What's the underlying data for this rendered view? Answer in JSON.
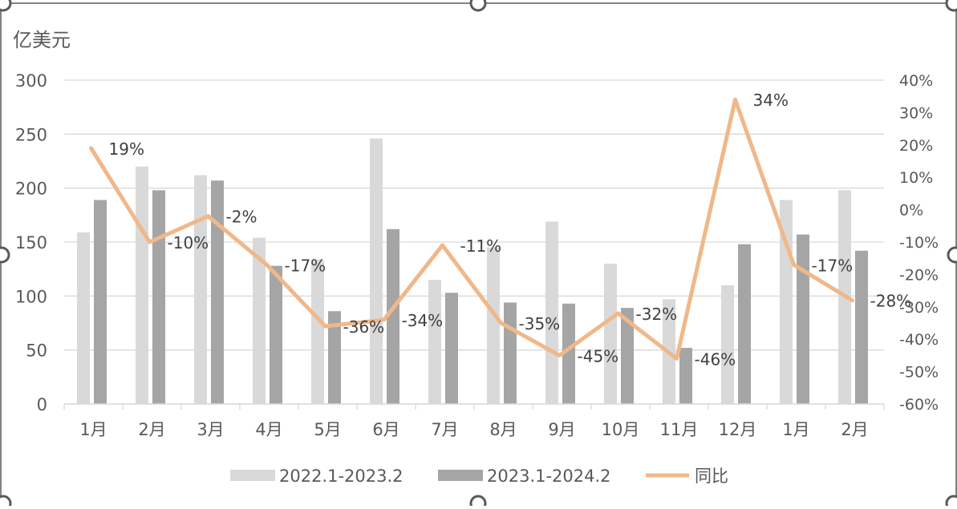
{
  "chart_data": {
    "type": "bar",
    "unit_label": "亿美元",
    "categories": [
      "1月",
      "2月",
      "3月",
      "4月",
      "5月",
      "6月",
      "7月",
      "8月",
      "9月",
      "10月",
      "11月",
      "12月",
      "1月",
      "2月"
    ],
    "series": [
      {
        "name": "2022.1-2023.2",
        "type": "bar",
        "color": "#D9D9D9",
        "values": [
          159,
          220,
          212,
          154,
          134,
          246,
          115,
          145,
          169,
          130,
          97,
          110,
          189,
          198
        ]
      },
      {
        "name": "2023.1-2024.2",
        "type": "bar",
        "color": "#A5A5A5",
        "values": [
          189,
          198,
          207,
          128,
          86,
          162,
          103,
          94,
          93,
          89,
          52,
          148,
          157,
          142
        ]
      },
      {
        "name": "同比",
        "type": "line",
        "axis": "right",
        "color": "#F0B88A",
        "values": [
          19,
          -10,
          -2,
          -17,
          -36,
          -34,
          -11,
          -35,
          -45,
          -32,
          -46,
          34,
          -17,
          -28
        ]
      }
    ],
    "data_labels": [
      "19%",
      "-10%",
      "-2%",
      "-17%",
      "-36%",
      "-34%",
      "-11%",
      "-35%",
      "-45%",
      "-32%",
      "-46%",
      "34%",
      "-17%",
      "-28%"
    ],
    "y_left": {
      "min": 0,
      "max": 300,
      "ticks": [
        0,
        50,
        100,
        150,
        200,
        250,
        300
      ]
    },
    "y_right": {
      "min": -60,
      "max": 40,
      "ticks": [
        "-60%",
        "-50%",
        "-40%",
        "-30%",
        "-20%",
        "-10%",
        "0%",
        "10%",
        "20%",
        "30%",
        "40%"
      ]
    },
    "legend": {
      "position": "bottom",
      "items": [
        "2022.1-2023.2",
        "2023.1-2024.2",
        "同比"
      ]
    },
    "gridlines": true,
    "colors": {
      "grid": "#D9D9D9",
      "axis_text": "#595959",
      "label_text": "#404040",
      "frame": "#595959"
    }
  }
}
